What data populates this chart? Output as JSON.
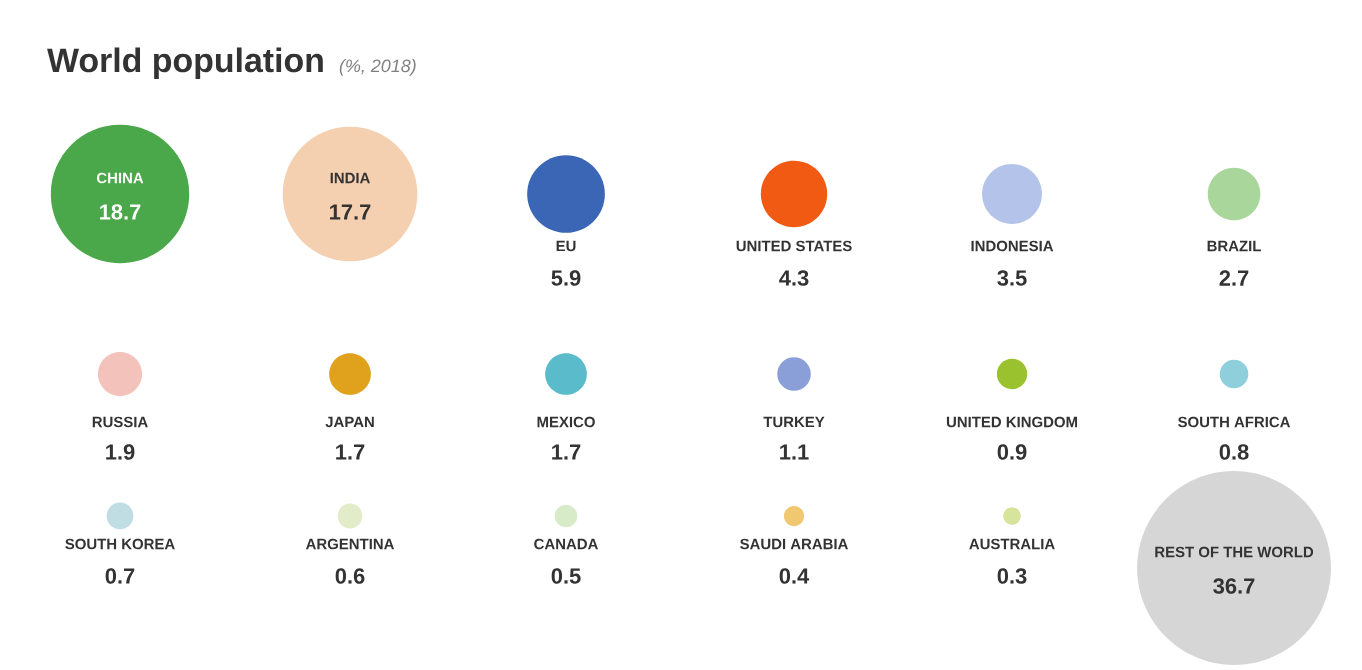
{
  "chart_data": {
    "type": "other",
    "title": "World population",
    "subtitle": "(%, 2018)",
    "categories": [
      "CHINA",
      "INDIA",
      "EU",
      "UNITED STATES",
      "INDONESIA",
      "BRAZIL",
      "RUSSIA",
      "JAPAN",
      "MEXICO",
      "TURKEY",
      "UNITED KINGDOM",
      "SOUTH AFRICA",
      "SOUTH KOREA",
      "ARGENTINA",
      "CANADA",
      "SAUDI ARABIA",
      "AUSTRALIA",
      "REST OF THE WORLD"
    ],
    "values": [
      18.7,
      17.7,
      5.9,
      4.3,
      3.5,
      2.7,
      1.9,
      1.7,
      1.7,
      1.1,
      0.9,
      0.8,
      0.7,
      0.6,
      0.5,
      0.4,
      0.3,
      36.7
    ],
    "colors": [
      "#4aa84a",
      "#f5d0b0",
      "#3a66b5",
      "#f05a12",
      "#b4c3ea",
      "#a9d69a",
      "#f3c3bb",
      "#e0a21c",
      "#5abccb",
      "#8a9fd8",
      "#9ac22f",
      "#8fcfdc",
      "#c0dde4",
      "#e3ecc8",
      "#d7ebc9",
      "#f0c870",
      "#d5e59b",
      "#d6d6d6"
    ],
    "data_labels": true
  }
}
